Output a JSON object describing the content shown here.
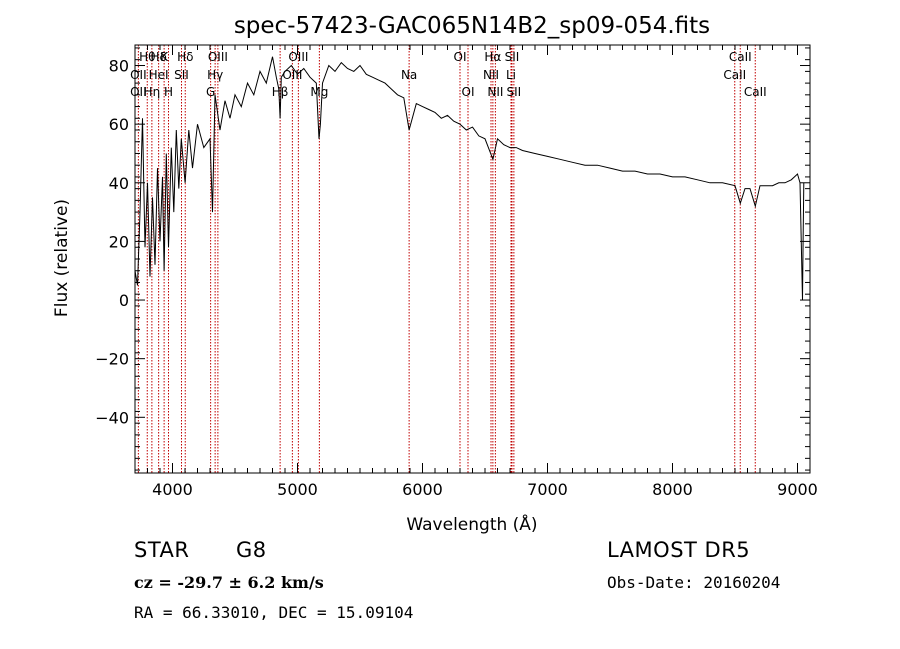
{
  "chart_data": {
    "type": "line",
    "title": "spec-57423-GAC065N14B2_sp09-054.fits",
    "xlabel": "Wavelength (Å)",
    "ylabel": "Flux (relative)",
    "xlim": [
      3700,
      9100
    ],
    "ylim": [
      -59,
      87
    ],
    "x_ticks": [
      4000,
      5000,
      6000,
      7000,
      8000,
      9000
    ],
    "y_ticks": [
      -40,
      -20,
      0,
      20,
      40,
      60,
      80
    ],
    "grid": false,
    "colors": {
      "spectrum": "#000000",
      "lines": "#c00000",
      "axes": "#000000"
    },
    "series": [
      {
        "x": [
          3700,
          3720,
          3740,
          3760,
          3780,
          3800,
          3820,
          3840,
          3860,
          3880,
          3900,
          3920,
          3933,
          3950,
          3968,
          3990,
          4010,
          4030,
          4050,
          4070,
          4101,
          4130,
          4160,
          4200,
          4250,
          4300,
          4320,
          4340,
          4380,
          4420,
          4460,
          4500,
          4550,
          4600,
          4650,
          4700,
          4750,
          4800,
          4830,
          4850,
          4861,
          4870,
          4900,
          4950,
          5000,
          5050,
          5100,
          5150,
          5172,
          5183,
          5200,
          5250,
          5300,
          5350,
          5400,
          5450,
          5500,
          5550,
          5600,
          5650,
          5700,
          5750,
          5800,
          5850,
          5893,
          5950,
          6000,
          6050,
          6100,
          6150,
          6200,
          6250,
          6300,
          6350,
          6400,
          6450,
          6500,
          6563,
          6600,
          6650,
          6700,
          6750,
          6800,
          6900,
          7000,
          7100,
          7200,
          7300,
          7400,
          7500,
          7600,
          7700,
          7800,
          7900,
          8000,
          8100,
          8200,
          8300,
          8400,
          8500,
          8542,
          8580,
          8620,
          8662,
          8700,
          8750,
          8800,
          8850,
          8900,
          8950,
          9000,
          9020,
          9040,
          9045,
          9050
        ],
        "y": [
          10,
          5,
          30,
          62,
          18,
          40,
          8,
          35,
          12,
          45,
          20,
          42,
          10,
          50,
          18,
          52,
          30,
          58,
          38,
          55,
          40,
          58,
          45,
          60,
          52,
          55,
          30,
          70,
          58,
          68,
          62,
          70,
          66,
          74,
          70,
          78,
          74,
          83,
          76,
          72,
          62,
          76,
          78,
          80,
          77,
          79,
          76,
          74,
          55,
          60,
          74,
          80,
          78,
          81,
          79,
          78,
          80,
          77,
          76,
          75,
          74,
          72,
          70,
          69,
          58,
          67,
          66,
          65,
          64,
          62,
          63,
          61,
          60,
          58,
          59,
          56,
          55,
          48,
          55,
          53,
          52,
          52,
          51,
          50,
          49,
          48,
          47,
          46,
          46,
          45,
          44,
          44,
          43,
          43,
          42,
          42,
          41,
          40,
          40,
          39,
          33,
          38,
          38,
          32,
          39,
          39,
          39,
          40,
          40,
          41,
          43,
          40,
          0,
          20,
          40
        ]
      }
    ],
    "lines": [
      {
        "label": "Hθ",
        "x": 3798,
        "row": 0
      },
      {
        "label": "OII",
        "x": 3727,
        "row": 1
      },
      {
        "label": "OII",
        "x": 3727,
        "row": 2
      },
      {
        "label": "Hη",
        "x": 3835,
        "row": 2
      },
      {
        "label": "Hδ",
        "x": 3889,
        "row": 0
      },
      {
        "label": "HeI",
        "x": 3889,
        "row": 1
      },
      {
        "label": "K",
        "x": 3933,
        "row": 0
      },
      {
        "label": "H",
        "x": 3968,
        "row": 2
      },
      {
        "label": "SII",
        "x": 4072,
        "row": 1
      },
      {
        "label": "Hδ",
        "x": 4102,
        "row": 0
      },
      {
        "label": "G",
        "x": 4305,
        "row": 2
      },
      {
        "label": "Hγ",
        "x": 4341,
        "row": 1
      },
      {
        "label": "OIII",
        "x": 4363,
        "row": 0
      },
      {
        "label": "Hβ",
        "x": 4861,
        "row": 2
      },
      {
        "label": "OIII",
        "x": 4959,
        "row": 1
      },
      {
        "label": "OIII",
        "x": 5007,
        "row": 0
      },
      {
        "label": "Mg",
        "x": 5175,
        "row": 2
      },
      {
        "label": "Na",
        "x": 5893,
        "row": 1
      },
      {
        "label": "OI",
        "x": 6300,
        "row": 0
      },
      {
        "label": "OI",
        "x": 6364,
        "row": 2
      },
      {
        "label": "NII",
        "x": 6548,
        "row": 1
      },
      {
        "label": "Hα",
        "x": 6563,
        "row": 0
      },
      {
        "label": "NII",
        "x": 6583,
        "row": 2
      },
      {
        "label": "SII",
        "x": 6716,
        "row": 0
      },
      {
        "label": "Li",
        "x": 6708,
        "row": 1
      },
      {
        "label": "SII",
        "x": 6731,
        "row": 2
      },
      {
        "label": "CaII",
        "x": 8498,
        "row": 1
      },
      {
        "label": "CaII",
        "x": 8542,
        "row": 0
      },
      {
        "label": "CaII",
        "x": 8662,
        "row": 2
      }
    ]
  },
  "info": {
    "class_label": "STAR",
    "subclass": "G8",
    "survey": "LAMOST DR5",
    "redshift_text": "cz = -29.7 ± 6.2 km/s",
    "obs_date": "Obs-Date: 20160204",
    "coords": "RA =  66.33010, DEC =  15.09104"
  }
}
